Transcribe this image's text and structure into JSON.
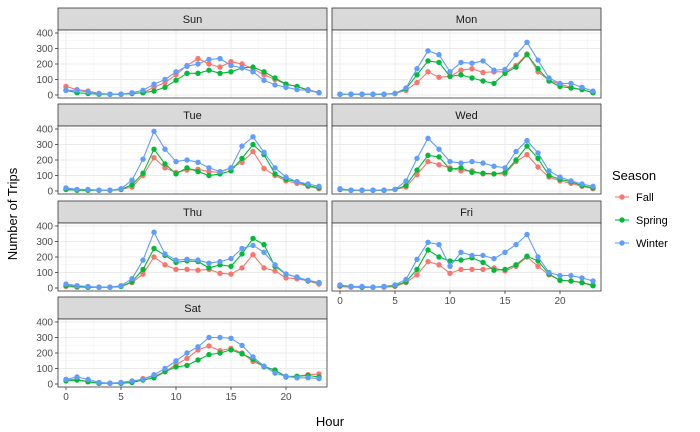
{
  "chart_data": {
    "type": "line",
    "facet_by": "day",
    "xlabel": "Hour",
    "ylabel": "Number of Trips",
    "xlim": [
      0,
      23
    ],
    "ylim": [
      0,
      400
    ],
    "x_ticks": [
      0,
      5,
      10,
      15,
      20
    ],
    "y_ticks": [
      0,
      100,
      200,
      300,
      400
    ],
    "grid": true,
    "legend": {
      "title": "Season",
      "placement": "right",
      "entries": [
        "Fall",
        "Spring",
        "Winter"
      ]
    },
    "series_colors": {
      "Fall": "#F8766D",
      "Spring": "#00BA38",
      "Winter": "#619CFF"
    },
    "x": [
      0,
      1,
      2,
      3,
      4,
      5,
      6,
      7,
      8,
      9,
      10,
      11,
      12,
      13,
      14,
      15,
      16,
      17,
      18,
      19,
      20,
      21,
      22,
      23
    ],
    "panels": [
      {
        "label": "Sun",
        "series": [
          {
            "name": "Fall",
            "values": [
              55,
              35,
              25,
              10,
              5,
              5,
              10,
              15,
              50,
              80,
              130,
              190,
              235,
              200,
              180,
              215,
              200,
              170,
              130,
              100,
              70,
              55,
              35,
              15
            ]
          },
          {
            "name": "Spring",
            "values": [
              30,
              15,
              10,
              5,
              5,
              5,
              10,
              15,
              25,
              50,
              95,
              140,
              140,
              160,
              140,
              150,
              175,
              180,
              150,
              110,
              70,
              55,
              30,
              15
            ]
          },
          {
            "name": "Winter",
            "values": [
              30,
              30,
              20,
              10,
              5,
              5,
              15,
              30,
              70,
              100,
              150,
              185,
              200,
              230,
              235,
              190,
              175,
              150,
              95,
              65,
              50,
              35,
              30,
              15
            ]
          }
        ]
      },
      {
        "label": "Mon",
        "series": [
          {
            "name": "Fall",
            "values": [
              5,
              5,
              5,
              5,
              5,
              10,
              30,
              80,
              150,
              115,
              120,
              160,
              170,
              145,
              150,
              150,
              190,
              265,
              150,
              95,
              70,
              50,
              35,
              15
            ]
          },
          {
            "name": "Spring",
            "values": [
              5,
              5,
              5,
              5,
              5,
              10,
              40,
              130,
              220,
              210,
              120,
              130,
              110,
              90,
              75,
              140,
              180,
              260,
              170,
              90,
              55,
              45,
              35,
              15
            ]
          },
          {
            "name": "Winter",
            "values": [
              5,
              5,
              5,
              5,
              5,
              10,
              45,
              170,
              285,
              260,
              150,
              210,
              205,
              220,
              160,
              165,
              260,
              340,
              225,
              110,
              75,
              75,
              50,
              25
            ]
          }
        ]
      },
      {
        "label": "Tue",
        "series": [
          {
            "name": "Fall",
            "values": [
              10,
              5,
              5,
              5,
              5,
              10,
              25,
              100,
              215,
              150,
              120,
              135,
              140,
              125,
              120,
              150,
              185,
              255,
              145,
              100,
              65,
              50,
              30,
              15
            ]
          },
          {
            "name": "Spring",
            "values": [
              10,
              5,
              5,
              5,
              5,
              10,
              40,
              115,
              270,
              175,
              110,
              150,
              125,
              100,
              110,
              130,
              210,
              300,
              235,
              110,
              75,
              60,
              35,
              20
            ]
          },
          {
            "name": "Winter",
            "values": [
              20,
              10,
              10,
              5,
              5,
              15,
              70,
              205,
              385,
              270,
              190,
              200,
              185,
              150,
              125,
              150,
              290,
              350,
              250,
              150,
              90,
              60,
              45,
              30
            ]
          }
        ]
      },
      {
        "label": "Wed",
        "series": [
          {
            "name": "Fall",
            "values": [
              10,
              5,
              5,
              5,
              5,
              10,
              25,
              105,
              190,
              170,
              150,
              130,
              130,
              110,
              110,
              110,
              190,
              235,
              155,
              90,
              65,
              50,
              30,
              15
            ]
          },
          {
            "name": "Spring",
            "values": [
              10,
              5,
              5,
              5,
              5,
              10,
              35,
              135,
              230,
              220,
              140,
              150,
              120,
              115,
              110,
              120,
              200,
              290,
              210,
              100,
              75,
              60,
              35,
              20
            ]
          },
          {
            "name": "Winter",
            "values": [
              15,
              5,
              5,
              5,
              5,
              10,
              65,
              210,
              340,
              270,
              190,
              180,
              190,
              180,
              160,
              150,
              255,
              325,
              245,
              130,
              90,
              65,
              45,
              30
            ]
          }
        ]
      },
      {
        "label": "Thu",
        "series": [
          {
            "name": "Fall",
            "values": [
              10,
              5,
              5,
              5,
              5,
              10,
              35,
              90,
              200,
              150,
              120,
              120,
              115,
              120,
              95,
              90,
              130,
              215,
              130,
              110,
              65,
              60,
              45,
              25
            ]
          },
          {
            "name": "Spring",
            "values": [
              15,
              10,
              5,
              5,
              5,
              10,
              40,
              120,
              255,
              210,
              165,
              175,
              170,
              130,
              150,
              140,
              220,
              320,
              280,
              140,
              90,
              70,
              45,
              35
            ]
          },
          {
            "name": "Winter",
            "values": [
              25,
              15,
              10,
              5,
              5,
              15,
              60,
              180,
              360,
              220,
              180,
              185,
              180,
              160,
              170,
              190,
              255,
              275,
              230,
              150,
              90,
              70,
              50,
              35
            ]
          }
        ]
      },
      {
        "label": "Fri",
        "series": [
          {
            "name": "Fall",
            "values": [
              10,
              5,
              5,
              5,
              5,
              10,
              35,
              85,
              170,
              150,
              95,
              120,
              120,
              120,
              130,
              110,
              140,
              200,
              140,
              85,
              50,
              45,
              35,
              20
            ]
          },
          {
            "name": "Spring",
            "values": [
              15,
              10,
              5,
              5,
              10,
              15,
              40,
              120,
              245,
              200,
              175,
              180,
              195,
              165,
              115,
              120,
              150,
              205,
              175,
              90,
              50,
              45,
              35,
              15
            ]
          },
          {
            "name": "Winter",
            "values": [
              20,
              10,
              10,
              5,
              10,
              20,
              55,
              185,
              295,
              280,
              140,
              230,
              210,
              210,
              190,
              230,
              280,
              345,
              200,
              100,
              80,
              80,
              65,
              45
            ]
          }
        ]
      },
      {
        "label": "Sat",
        "series": [
          {
            "name": "Fall",
            "values": [
              30,
              30,
              15,
              5,
              5,
              5,
              10,
              35,
              50,
              80,
              125,
              165,
              220,
              245,
              215,
              230,
              200,
              145,
              115,
              90,
              50,
              50,
              60,
              65
            ]
          },
          {
            "name": "Spring",
            "values": [
              20,
              25,
              15,
              5,
              5,
              5,
              10,
              25,
              40,
              80,
              110,
              120,
              155,
              190,
              200,
              220,
              195,
              160,
              110,
              90,
              45,
              50,
              55,
              45
            ]
          },
          {
            "name": "Winter",
            "values": [
              30,
              45,
              30,
              10,
              5,
              10,
              20,
              30,
              60,
              100,
              150,
              200,
              240,
              300,
              300,
              295,
              250,
              175,
              115,
              70,
              50,
              40,
              40,
              35
            ]
          }
        ]
      }
    ]
  }
}
